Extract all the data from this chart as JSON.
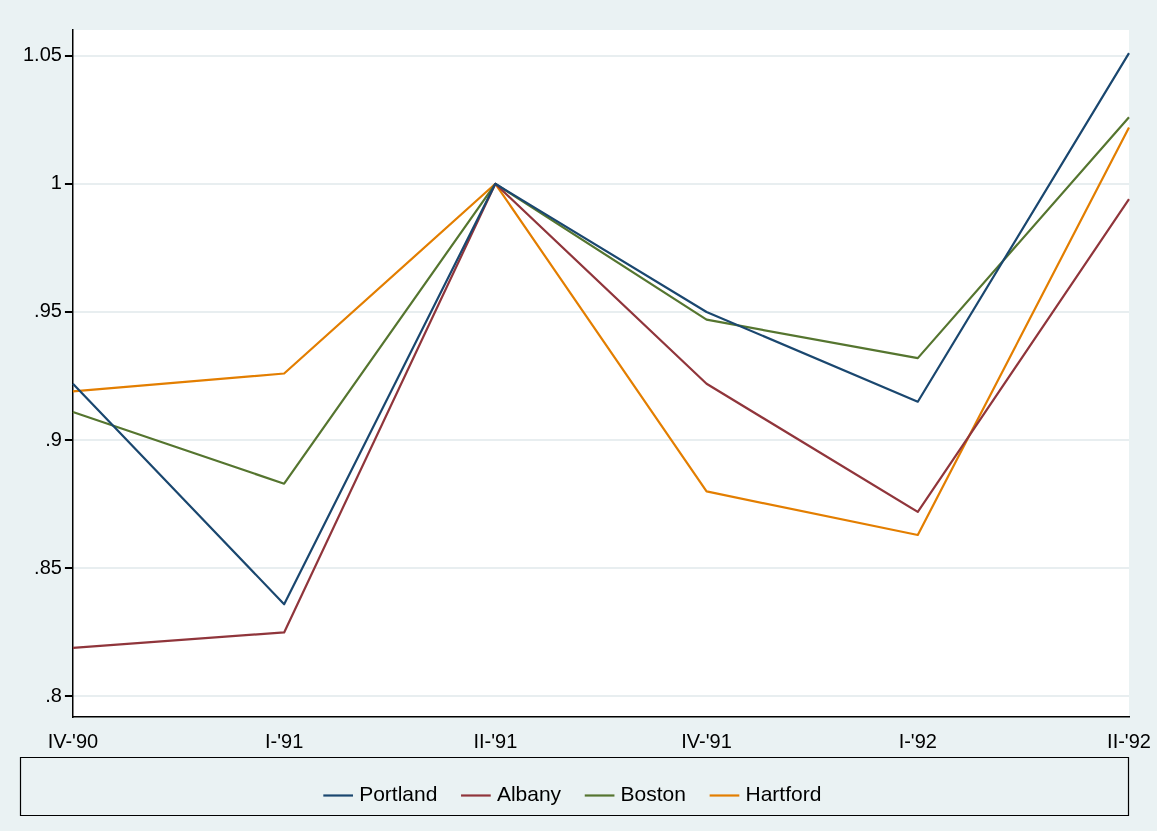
{
  "chart_data": {
    "type": "line",
    "categories": [
      "IV-'90",
      "I-'91",
      "II-'91",
      "IV-'91",
      "I-'92",
      "II-'92"
    ],
    "series": [
      {
        "name": "Portland",
        "color": "#1a476f",
        "values": [
          0.922,
          0.836,
          1,
          0.95,
          0.915,
          1.051
        ]
      },
      {
        "name": "Albany",
        "color": "#90353b",
        "values": [
          0.819,
          0.825,
          1,
          0.922,
          0.872,
          0.994
        ]
      },
      {
        "name": "Boston",
        "color": "#55752f",
        "values": [
          0.911,
          0.883,
          1,
          0.947,
          0.932,
          1.026
        ]
      },
      {
        "name": "Hartford",
        "color": "#e37e00",
        "values": [
          0.919,
          0.926,
          1,
          0.88,
          0.863,
          1.022
        ]
      }
    ],
    "ylim": [
      0.792,
      1.06
    ],
    "yticks": [
      {
        "value": 0.8,
        "label": ".8"
      },
      {
        "value": 0.85,
        "label": ".85"
      },
      {
        "value": 0.9,
        "label": ".9"
      },
      {
        "value": 0.95,
        "label": ".95"
      },
      {
        "value": 1,
        "label": "1"
      },
      {
        "value": 1.05,
        "label": "1.05"
      }
    ],
    "grid": "y",
    "legend": "bottom",
    "marker": "none",
    "line_style": "solid"
  }
}
